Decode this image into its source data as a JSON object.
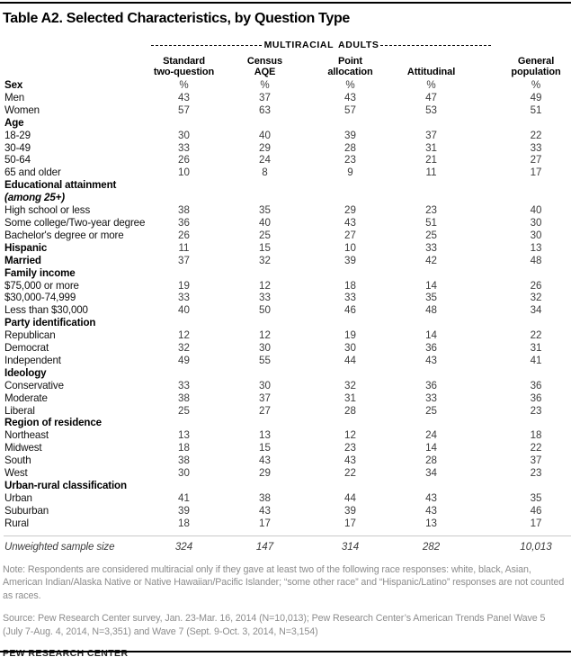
{
  "chart_data": {
    "type": "table",
    "title": "Table A2. Selected Characteristics, by Question Type",
    "group_header": "MULTIRACIAL ADULTS",
    "columns": [
      "Standard\ntwo-question",
      "Census\nAQE",
      "Point\nallocation",
      "Attitudinal",
      "General\npopulation"
    ],
    "unit": "%",
    "rows": [
      {
        "label": "Sex",
        "kind": "section",
        "values": [
          "%",
          "%",
          "%",
          "%",
          "%"
        ]
      },
      {
        "label": "Men",
        "kind": "item",
        "values": [
          "43",
          "37",
          "43",
          "47",
          "49"
        ]
      },
      {
        "label": "Women",
        "kind": "item",
        "values": [
          "57",
          "63",
          "57",
          "53",
          "51"
        ]
      },
      {
        "label": "Age",
        "kind": "section",
        "values": []
      },
      {
        "label": "18-29",
        "kind": "item",
        "values": [
          "30",
          "40",
          "39",
          "37",
          "22"
        ]
      },
      {
        "label": "30-49",
        "kind": "item",
        "values": [
          "33",
          "29",
          "28",
          "31",
          "33"
        ]
      },
      {
        "label": "50-64",
        "kind": "item",
        "values": [
          "26",
          "24",
          "23",
          "21",
          "27"
        ]
      },
      {
        "label": "65 and older",
        "kind": "item",
        "values": [
          "10",
          "8",
          "9",
          "11",
          "17"
        ]
      },
      {
        "label": "Educational attainment",
        "kind": "section",
        "values": []
      },
      {
        "label": "(among 25+)",
        "kind": "section-italic",
        "values": []
      },
      {
        "label": "High school or less",
        "kind": "item",
        "values": [
          "38",
          "35",
          "29",
          "23",
          "40"
        ]
      },
      {
        "label": "Some college/Two-year degree",
        "kind": "item",
        "values": [
          "36",
          "40",
          "43",
          "51",
          "30"
        ]
      },
      {
        "label": "Bachelor's degree or more",
        "kind": "item",
        "values": [
          "26",
          "25",
          "27",
          "25",
          "30"
        ]
      },
      {
        "label": "Hispanic",
        "kind": "section",
        "values": [
          "11",
          "15",
          "10",
          "33",
          "13"
        ]
      },
      {
        "label": "Married",
        "kind": "section",
        "values": [
          "37",
          "32",
          "39",
          "42",
          "48"
        ]
      },
      {
        "label": "Family income",
        "kind": "section",
        "values": []
      },
      {
        "label": "$75,000 or more",
        "kind": "item",
        "values": [
          "19",
          "12",
          "18",
          "14",
          "26"
        ]
      },
      {
        "label": "$30,000-74,999",
        "kind": "item",
        "values": [
          "33",
          "33",
          "33",
          "35",
          "32"
        ]
      },
      {
        "label": "Less than $30,000",
        "kind": "item",
        "values": [
          "40",
          "50",
          "46",
          "48",
          "34"
        ]
      },
      {
        "label": "Party identification",
        "kind": "section",
        "values": []
      },
      {
        "label": "Republican",
        "kind": "item",
        "values": [
          "12",
          "12",
          "19",
          "14",
          "22"
        ]
      },
      {
        "label": "Democrat",
        "kind": "item",
        "values": [
          "32",
          "30",
          "30",
          "36",
          "31"
        ]
      },
      {
        "label": "Independent",
        "kind": "item",
        "values": [
          "49",
          "55",
          "44",
          "43",
          "41"
        ]
      },
      {
        "label": "Ideology",
        "kind": "section",
        "values": []
      },
      {
        "label": "Conservative",
        "kind": "item",
        "values": [
          "33",
          "30",
          "32",
          "36",
          "36"
        ]
      },
      {
        "label": "Moderate",
        "kind": "item",
        "values": [
          "38",
          "37",
          "31",
          "33",
          "36"
        ]
      },
      {
        "label": "Liberal",
        "kind": "item",
        "values": [
          "25",
          "27",
          "28",
          "25",
          "23"
        ]
      },
      {
        "label": "Region of residence",
        "kind": "section",
        "values": []
      },
      {
        "label": "Northeast",
        "kind": "item",
        "values": [
          "13",
          "13",
          "12",
          "24",
          "18"
        ]
      },
      {
        "label": "Midwest",
        "kind": "item",
        "values": [
          "18",
          "15",
          "23",
          "14",
          "22"
        ]
      },
      {
        "label": "South",
        "kind": "item",
        "values": [
          "38",
          "43",
          "43",
          "28",
          "37"
        ]
      },
      {
        "label": "West",
        "kind": "item",
        "values": [
          "30",
          "29",
          "22",
          "34",
          "23"
        ]
      },
      {
        "label": "Urban-rural classification",
        "kind": "section",
        "values": []
      },
      {
        "label": "Urban",
        "kind": "item",
        "values": [
          "41",
          "38",
          "44",
          "43",
          "35"
        ]
      },
      {
        "label": "Suburban",
        "kind": "item",
        "values": [
          "39",
          "43",
          "39",
          "43",
          "46"
        ]
      },
      {
        "label": "Rural",
        "kind": "item",
        "values": [
          "18",
          "17",
          "17",
          "13",
          "17"
        ]
      }
    ],
    "sample_row": {
      "label": "Unweighted sample size",
      "values": [
        "324",
        "147",
        "314",
        "282",
        "10,013"
      ]
    }
  },
  "footer": {
    "note": "Note: Respondents are considered multiracial only if they gave at least two of the following race responses: white, black, Asian, American Indian/Alaska Native or Native Hawaiian/Pacific Islander; “some other race” and “Hispanic/Latino” responses are not counted as races.",
    "source": "Source: Pew Research Center survey, Jan. 23-Mar. 16, 2014 (N=10,013); Pew Research Center’s American Trends Panel Wave 5 (July 7-Aug. 4, 2014, N=3,351) and Wave 7 (Sept. 9-Oct. 3, 2014, N=3,154)",
    "branding": "PEW RESEARCH CENTER"
  }
}
